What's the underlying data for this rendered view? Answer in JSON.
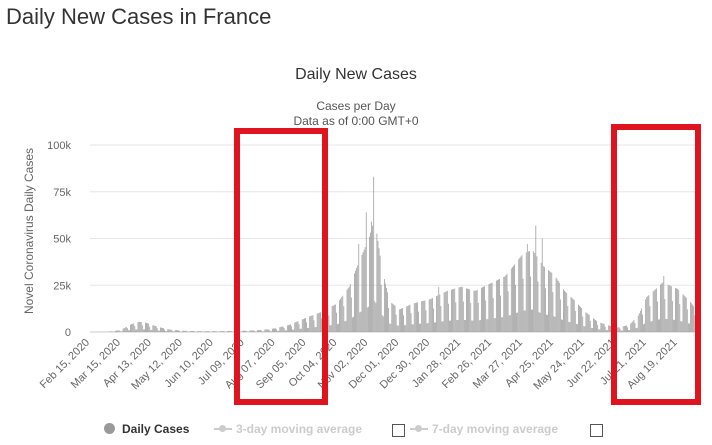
{
  "page_heading": "Daily New Cases in France",
  "chart_data": {
    "type": "bar",
    "title": "Daily New Cases",
    "subtitle": [
      "Cases per Day",
      "Data as of 0:00 GMT+0"
    ],
    "ylabel": "Novel Coronavirus Daily Cases",
    "xlabel": "",
    "ylim": [
      0,
      100000
    ],
    "y_ticks": [
      0,
      25000,
      50000,
      75000,
      100000
    ],
    "y_tick_labels": [
      "0",
      "25k",
      "50k",
      "75k",
      "100k"
    ],
    "x_range": [
      "2020-02-15",
      "2021-09-08"
    ],
    "x_tick_labels": [
      "Feb 15, 2020",
      "Mar 15, 2020",
      "Apr 13, 2020",
      "May 12, 2020",
      "Jun 10, 2020",
      "Jul 09, 2020",
      "Aug 07, 2020",
      "Sep 05, 2020",
      "Oct 04, 2020",
      "Nov 02, 2020",
      "Dec 01, 2020",
      "Dec 30, 2020",
      "Jan 28, 2021",
      "Feb 26, 2021",
      "Mar 27, 2021",
      "Apr 25, 2021",
      "May 24, 2021",
      "Jun 22, 2021",
      "Jul 21, 2021",
      "Aug 19, 2021"
    ],
    "bar_color": "#999999",
    "series": [
      {
        "name": "Daily Cases",
        "values": [
          [
            "2020-02-15",
            0
          ],
          [
            "2020-03-01",
            100
          ],
          [
            "2020-03-08",
            400
          ],
          [
            "2020-03-15",
            1000
          ],
          [
            "2020-03-20",
            2500
          ],
          [
            "2020-03-25",
            3800
          ],
          [
            "2020-04-01",
            5000
          ],
          [
            "2020-04-07",
            4600
          ],
          [
            "2020-04-13",
            3500
          ],
          [
            "2020-04-20",
            2300
          ],
          [
            "2020-04-30",
            1200
          ],
          [
            "2020-05-12",
            600
          ],
          [
            "2020-05-28",
            400
          ],
          [
            "2020-06-10",
            400
          ],
          [
            "2020-06-25",
            500
          ],
          [
            "2020-07-09",
            600
          ],
          [
            "2020-07-25",
            1000
          ],
          [
            "2020-08-07",
            1800
          ],
          [
            "2020-08-20",
            3500
          ],
          [
            "2020-09-05",
            7000
          ],
          [
            "2020-09-20",
            10000
          ],
          [
            "2020-10-04",
            14000
          ],
          [
            "2020-10-15",
            22000
          ],
          [
            "2020-10-25",
            35000
          ],
          [
            "2020-11-02",
            45000
          ],
          [
            "2020-11-08",
            55000
          ],
          [
            "2020-11-15",
            30000
          ],
          [
            "2020-11-22",
            15000
          ],
          [
            "2020-12-01",
            11000
          ],
          [
            "2020-12-15",
            14000
          ],
          [
            "2020-12-30",
            16000
          ],
          [
            "2021-01-15",
            20000
          ],
          [
            "2021-01-28",
            22000
          ],
          [
            "2021-02-10",
            20000
          ],
          [
            "2021-02-26",
            24000
          ],
          [
            "2021-03-10",
            27000
          ],
          [
            "2021-03-27",
            38000
          ],
          [
            "2021-04-05",
            40000
          ],
          [
            "2021-04-15",
            32000
          ],
          [
            "2021-04-25",
            28000
          ],
          [
            "2021-05-05",
            20000
          ],
          [
            "2021-05-15",
            15000
          ],
          [
            "2021-05-24",
            10000
          ],
          [
            "2021-06-05",
            5000
          ],
          [
            "2021-06-22",
            2000
          ],
          [
            "2021-07-05",
            3500
          ],
          [
            "2021-07-13",
            8000
          ],
          [
            "2021-07-21",
            17000
          ],
          [
            "2021-08-05",
            24000
          ],
          [
            "2021-08-19",
            21000
          ],
          [
            "2021-09-01",
            14000
          ],
          [
            "2021-09-08",
            9000
          ]
        ],
        "spikes": [
          [
            "2020-10-24",
            47000
          ],
          [
            "2020-10-31",
            64000
          ],
          [
            "2020-11-03",
            51000
          ],
          [
            "2020-11-05",
            59000
          ],
          [
            "2020-11-07",
            83000
          ],
          [
            "2021-01-07",
            24000
          ],
          [
            "2021-03-31",
            47000
          ],
          [
            "2021-04-08",
            57000
          ],
          [
            "2021-04-14",
            50000
          ],
          [
            "2021-08-06",
            30000
          ]
        ]
      }
    ],
    "legend": [
      {
        "label": "Daily Cases",
        "active": true
      },
      {
        "label": "3-day moving average",
        "active": false
      },
      {
        "label": "7-day moving average",
        "active": false
      }
    ]
  }
}
